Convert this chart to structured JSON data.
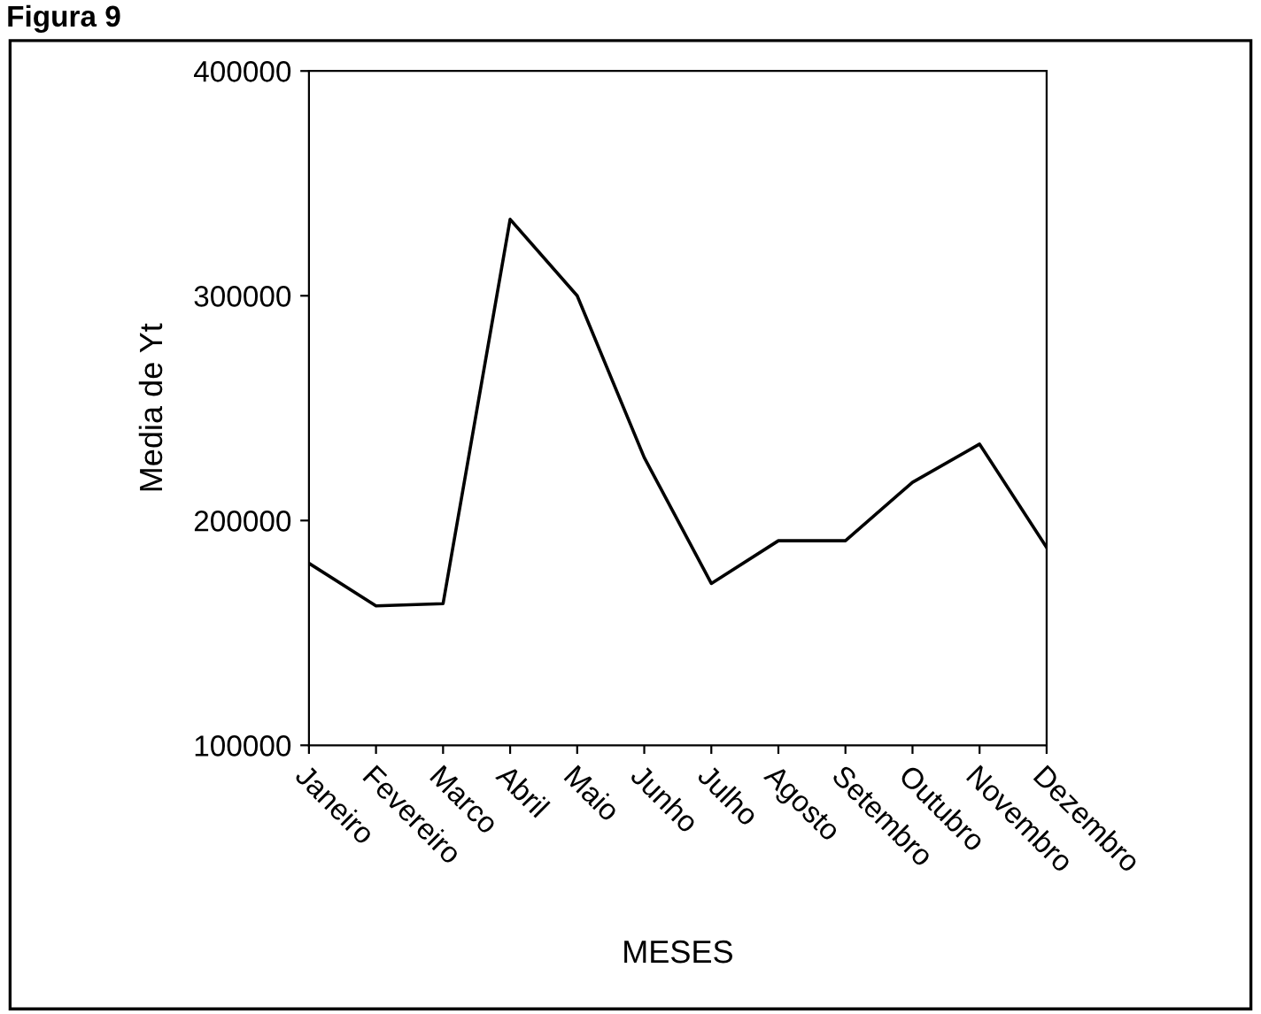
{
  "chart_data": {
    "type": "line",
    "title": "Figura 9",
    "xlabel": "MESES",
    "ylabel": "Media de Yt",
    "categories": [
      "Janeiro",
      "Fevereiro",
      "Marco",
      "Abril",
      "Maio",
      "Junho",
      "Julho",
      "Agosto",
      "Setembro",
      "Outubro",
      "Novembro",
      "Dezembro"
    ],
    "series": [
      {
        "color": "#000000",
        "values": [
          181000,
          162000,
          163000,
          334000,
          300000,
          228000,
          172000,
          191000,
          191000,
          217000,
          234000,
          188000
        ]
      }
    ],
    "ylim": [
      100000,
      400000
    ],
    "yticks": [
      100000,
      200000,
      300000,
      400000
    ],
    "grid": false,
    "legend": false,
    "marker": "none",
    "line_style": "solid"
  }
}
